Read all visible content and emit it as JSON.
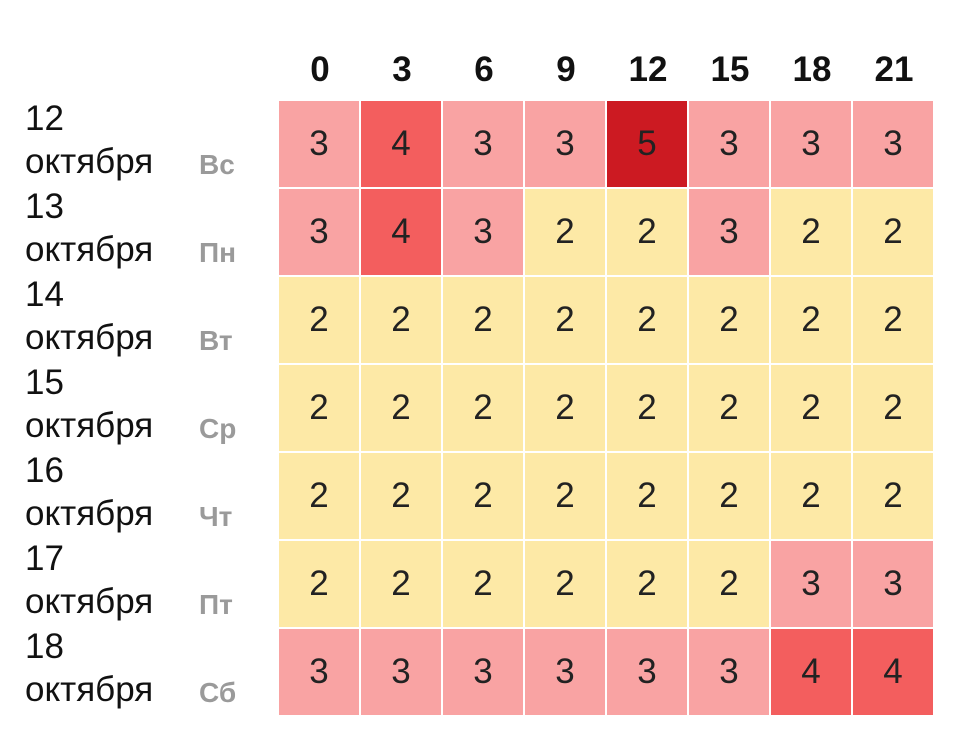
{
  "chart_data": {
    "type": "heatmap",
    "x": [
      "0",
      "3",
      "6",
      "9",
      "12",
      "15",
      "18",
      "21"
    ],
    "rows": [
      {
        "date": "12",
        "month": "октября",
        "dow": "Вс",
        "values": [
          3,
          4,
          3,
          3,
          5,
          3,
          3,
          3
        ]
      },
      {
        "date": "13",
        "month": "октября",
        "dow": "Пн",
        "values": [
          3,
          4,
          3,
          2,
          2,
          3,
          2,
          2
        ]
      },
      {
        "date": "14",
        "month": "октября",
        "dow": "Вт",
        "values": [
          2,
          2,
          2,
          2,
          2,
          2,
          2,
          2
        ]
      },
      {
        "date": "15",
        "month": "октября",
        "dow": "Ср",
        "values": [
          2,
          2,
          2,
          2,
          2,
          2,
          2,
          2
        ]
      },
      {
        "date": "16",
        "month": "октября",
        "dow": "Чт",
        "values": [
          2,
          2,
          2,
          2,
          2,
          2,
          2,
          2
        ]
      },
      {
        "date": "17",
        "month": "октября",
        "dow": "Пт",
        "values": [
          2,
          2,
          2,
          2,
          2,
          2,
          3,
          3
        ]
      },
      {
        "date": "18",
        "month": "октября",
        "dow": "Сб",
        "values": [
          3,
          3,
          3,
          3,
          3,
          3,
          4,
          4
        ]
      }
    ],
    "colors": {
      "2": "#fde9a6",
      "3": "#f9a3a3",
      "4": "#f35e5e",
      "5": "#cc1a22"
    }
  }
}
